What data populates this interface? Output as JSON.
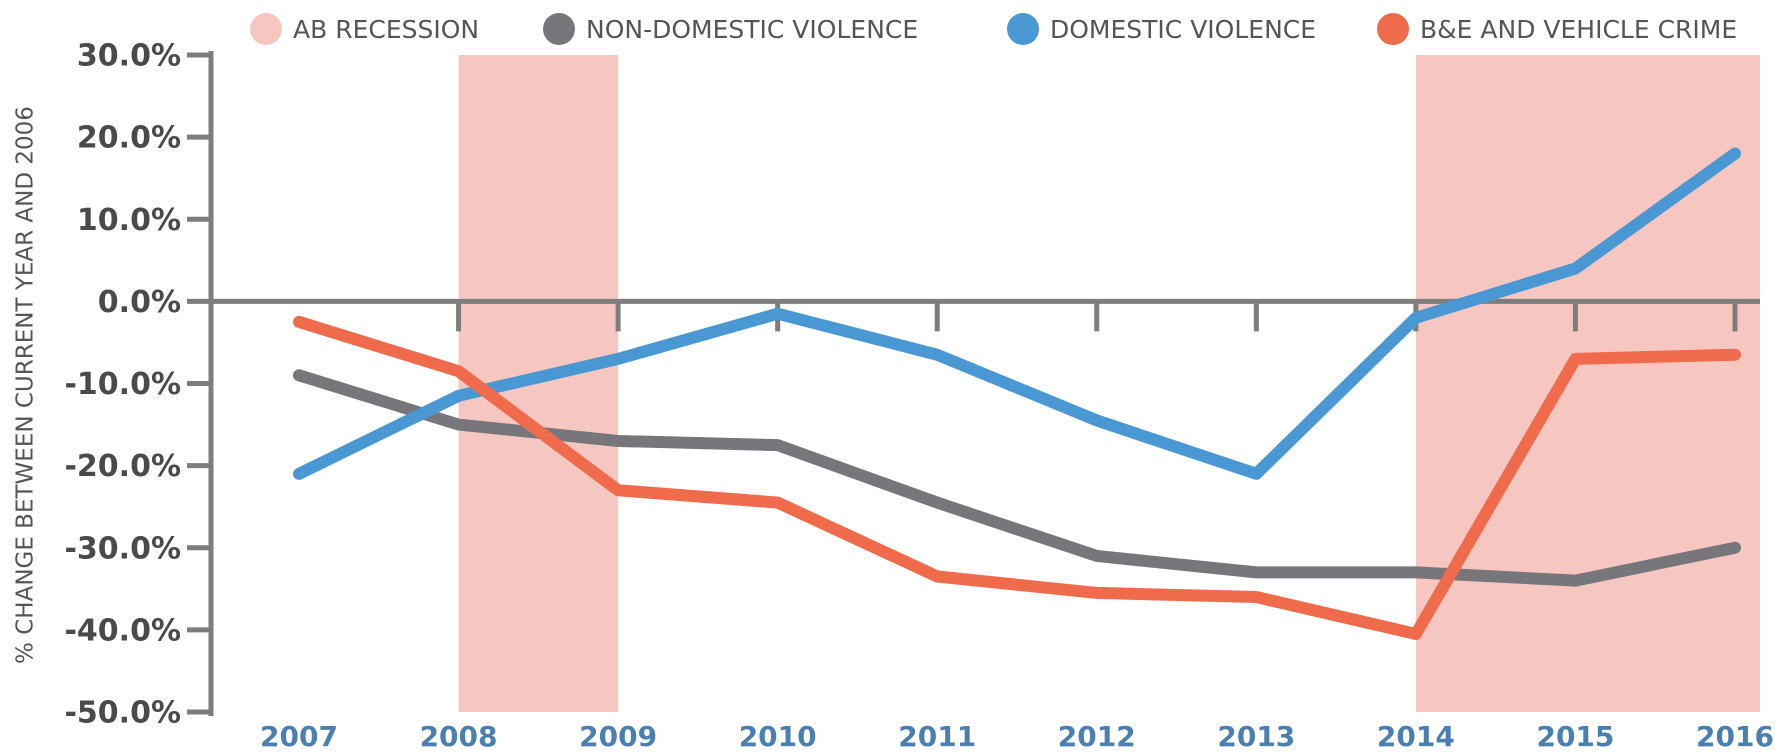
{
  "chart_data": {
    "type": "line",
    "y_label": "% CHANGE BETWEEN CURRENT YEAR AND 2006",
    "x": [
      2007,
      2008,
      2009,
      2010,
      2011,
      2012,
      2013,
      2014,
      2015,
      2016
    ],
    "xlim": [
      2007,
      2016
    ],
    "xticks": [
      2007,
      2008,
      2009,
      2010,
      2011,
      2012,
      2013,
      2014,
      2015,
      2016
    ],
    "ylim": [
      -50,
      30
    ],
    "yticks": [
      {
        "value": 30,
        "label": "30.0%"
      },
      {
        "value": 20,
        "label": "20.0%"
      },
      {
        "value": 10,
        "label": "10.0%"
      },
      {
        "value": 0,
        "label": "0.0%"
      },
      {
        "value": -10,
        "label": "-10.0%"
      },
      {
        "value": -20,
        "label": "-20.0%"
      },
      {
        "value": -30,
        "label": "-30.0%"
      },
      {
        "value": -40,
        "label": "-40.0%"
      },
      {
        "value": -50,
        "label": "-50.0%"
      }
    ],
    "recession": {
      "name": "AB RECESSION",
      "color": "#f6c7c1",
      "ranges": [
        [
          2008,
          2009
        ],
        [
          2014,
          2016
        ]
      ]
    },
    "series": [
      {
        "name": "NON-DOMESTIC VIOLENCE",
        "color": "#77767b",
        "values": [
          -9,
          -15,
          -17,
          -17.5,
          -24.5,
          -31,
          -33,
          -33,
          -34,
          -30
        ]
      },
      {
        "name": "DOMESTIC VIOLENCE",
        "color": "#4a98d3",
        "values": [
          -21,
          -11.5,
          -7,
          -1.5,
          -6.5,
          -14.5,
          -21,
          -2,
          4,
          18
        ]
      },
      {
        "name": "B&E AND VEHICLE CRIME",
        "color": "#f06a4c",
        "values": [
          -2.5,
          -8.5,
          -23,
          -24.5,
          -33.5,
          -35.5,
          -36,
          -40.5,
          -7,
          -6.5
        ]
      }
    ]
  }
}
